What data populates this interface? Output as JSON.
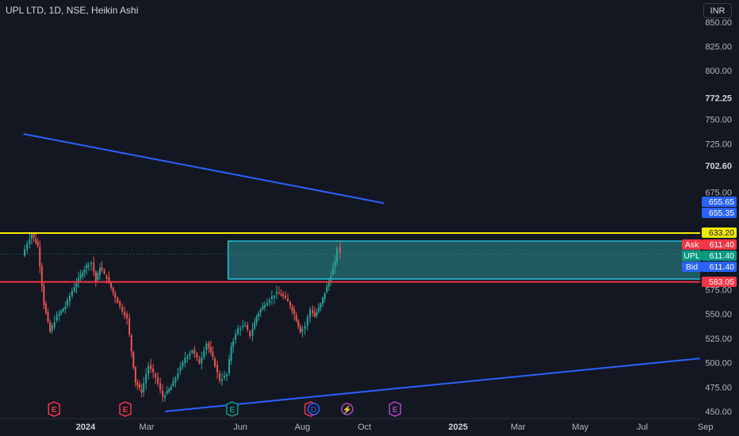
{
  "header": {
    "title": "UPL LTD, 1D, NSE, Heikin Ashi",
    "currency": "INR"
  },
  "colors": {
    "background": "#131722",
    "up": "#26a69a",
    "down": "#ef5350",
    "trendline": "#2962ff",
    "yellow_line": "#f5e900",
    "red_line": "#f23645",
    "box_fill": "#2e8f94",
    "box_border": "#22c1dc",
    "axis_text": "#b2b5be"
  },
  "chart_data": {
    "type": "candlestick",
    "title": "UPL LTD, 1D, NSE, Heikin Ashi",
    "ylim": [
      449,
      858
    ],
    "y_ticks": [
      "850.00",
      "825.00",
      "800.00",
      "772.25",
      "750.00",
      "725.00",
      "702.60",
      "675.00",
      "575.00",
      "550.00",
      "525.00",
      "500.00",
      "475.00",
      "450.00"
    ],
    "bold_ticks": [
      "772.25",
      "702.60"
    ],
    "x_ticks": [
      "2024",
      "Mar",
      "Jun",
      "Aug",
      "Oct",
      "2025",
      "Mar",
      "May",
      "Jul",
      "Sep"
    ],
    "bold_x_ticks": [
      "2024",
      "2025"
    ],
    "x_tick_dates": [
      "2024-01-01",
      "2024-03-01",
      "2024-06-01",
      "2024-08-01",
      "2024-10-01",
      "2025-01-01",
      "2025-03-01",
      "2025-05-01",
      "2025-07-01",
      "2025-09-01"
    ],
    "price_tags": [
      {
        "label": "",
        "value": "655.65",
        "price": 655.65,
        "color": "#2962ff"
      },
      {
        "label": "",
        "value": "655.35",
        "price": 655.35,
        "color": "#2962ff"
      },
      {
        "label": "",
        "value": "633.20",
        "price": 633.2,
        "color": "#f5e900"
      },
      {
        "label": "Ask",
        "value": "611.40",
        "price": 622.4,
        "color": "#f23645"
      },
      {
        "label": "UPL",
        "value": "611.40",
        "price": 611.4,
        "color": "#089981"
      },
      {
        "label": "Bid",
        "value": "611.40",
        "price": 600.4,
        "color": "#2962ff"
      },
      {
        "label": "",
        "value": "583.05",
        "price": 583.05,
        "color": "#f23645"
      }
    ],
    "horizontal_lines": [
      {
        "price": 633.2,
        "color": "#f5e900"
      },
      {
        "price": 583.05,
        "color": "#f23645"
      }
    ],
    "trendlines": [
      {
        "start": [
          "2023-11-01",
          735
        ],
        "end": [
          "2024-10-20",
          664
        ]
      },
      {
        "start": [
          "2024-03-19",
          450
        ],
        "end": [
          "2025-09-01",
          505
        ]
      }
    ],
    "zone_box": {
      "start": "2024-05-20",
      "end": "2025-09-12",
      "top": 625,
      "bottom": 586
    },
    "events": [
      {
        "date": "2023-12-01",
        "icon": "E",
        "color": "#f23645"
      },
      {
        "date": "2024-02-09",
        "icon": "E",
        "color": "#f23645"
      },
      {
        "date": "2024-05-24",
        "icon": "E",
        "color": "#089981"
      },
      {
        "date": "2024-08-09",
        "icon": "E",
        "color": "#f23645"
      },
      {
        "date": "2024-08-12",
        "icon": "D",
        "color": "#2962ff"
      },
      {
        "date": "2024-09-14",
        "icon": "⚡",
        "color": "#ab47bc"
      },
      {
        "date": "2024-10-31",
        "icon": "E",
        "color": "#ab47bc"
      }
    ],
    "price_path": [
      [
        "2023-11-01",
        610
      ],
      [
        "2023-11-06",
        623
      ],
      [
        "2023-11-10",
        632
      ],
      [
        "2023-11-16",
        620
      ],
      [
        "2023-11-22",
        560
      ],
      [
        "2023-11-28",
        532
      ],
      [
        "2023-12-05",
        548
      ],
      [
        "2023-12-13",
        558
      ],
      [
        "2023-12-20",
        574
      ],
      [
        "2023-12-28",
        590
      ],
      [
        "2024-01-03",
        600
      ],
      [
        "2024-01-08",
        603
      ],
      [
        "2024-01-12",
        584
      ],
      [
        "2024-01-16",
        598
      ],
      [
        "2024-01-23",
        587
      ],
      [
        "2024-01-29",
        572
      ],
      [
        "2024-02-05",
        558
      ],
      [
        "2024-02-12",
        545
      ],
      [
        "2024-02-16",
        512
      ],
      [
        "2024-02-20",
        480
      ],
      [
        "2024-02-26",
        470
      ],
      [
        "2024-03-04",
        497
      ],
      [
        "2024-03-11",
        485
      ],
      [
        "2024-03-18",
        465
      ],
      [
        "2024-03-26",
        475
      ],
      [
        "2024-04-02",
        490
      ],
      [
        "2024-04-09",
        505
      ],
      [
        "2024-04-16",
        513
      ],
      [
        "2024-04-23",
        500
      ],
      [
        "2024-04-30",
        520
      ],
      [
        "2024-05-06",
        505
      ],
      [
        "2024-05-13",
        482
      ],
      [
        "2024-05-20",
        488
      ],
      [
        "2024-05-24",
        517
      ],
      [
        "2024-05-31",
        535
      ],
      [
        "2024-06-07",
        538
      ],
      [
        "2024-06-12",
        528
      ],
      [
        "2024-06-18",
        548
      ],
      [
        "2024-06-24",
        558
      ],
      [
        "2024-07-01",
        565
      ],
      [
        "2024-07-08",
        572
      ],
      [
        "2024-07-12",
        570
      ],
      [
        "2024-07-19",
        563
      ],
      [
        "2024-07-25",
        550
      ],
      [
        "2024-07-31",
        532
      ],
      [
        "2024-08-05",
        538
      ],
      [
        "2024-08-10",
        555
      ],
      [
        "2024-08-14",
        548
      ],
      [
        "2024-08-20",
        560
      ],
      [
        "2024-08-26",
        578
      ],
      [
        "2024-08-30",
        590
      ],
      [
        "2024-09-03",
        604
      ],
      [
        "2024-09-06",
        618
      ],
      [
        "2024-09-09",
        612
      ]
    ]
  }
}
